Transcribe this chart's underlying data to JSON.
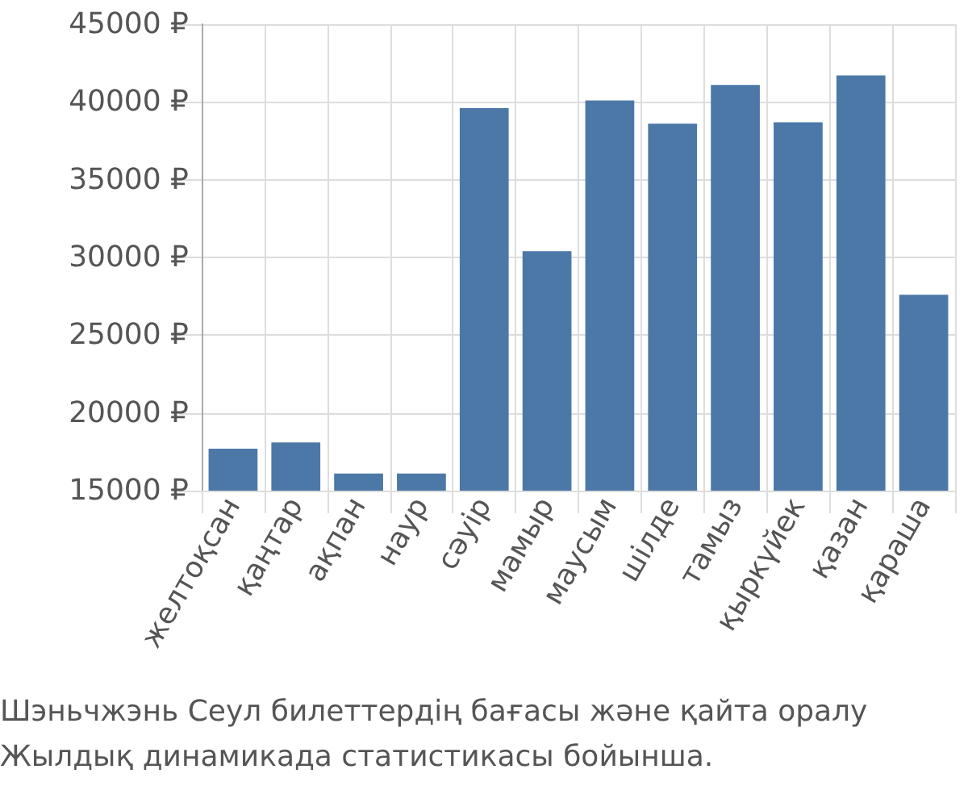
{
  "chart_data": {
    "type": "bar",
    "categories": [
      "желтоқсан",
      "қаңтар",
      "ақпан",
      "наур",
      "сәуір",
      "мамыр",
      "маусым",
      "шілде",
      "тамыз",
      "қыркүйек",
      "қазан",
      "қараша"
    ],
    "values": [
      17700,
      18100,
      16100,
      16100,
      39600,
      30400,
      40100,
      38600,
      41100,
      38700,
      41700,
      27600
    ],
    "color": "#4c78a8",
    "ylim": [
      15000,
      45000
    ],
    "yticks": [
      {
        "value": 15000,
        "label": "15000 ₽"
      },
      {
        "value": 20000,
        "label": "20000 ₽"
      },
      {
        "value": 25000,
        "label": "25000 ₽"
      },
      {
        "value": 30000,
        "label": "30000 ₽"
      },
      {
        "value": 35000,
        "label": "35000 ₽"
      },
      {
        "value": 40000,
        "label": "40000 ₽"
      },
      {
        "value": 45000,
        "label": "45000 ₽"
      }
    ],
    "grid": true,
    "annotations": [
      "Шэньчжэнь Сеул билеттердің бағасы және қайта оралу",
      "Жылдық динамикада статистикасы бойынша."
    ]
  }
}
